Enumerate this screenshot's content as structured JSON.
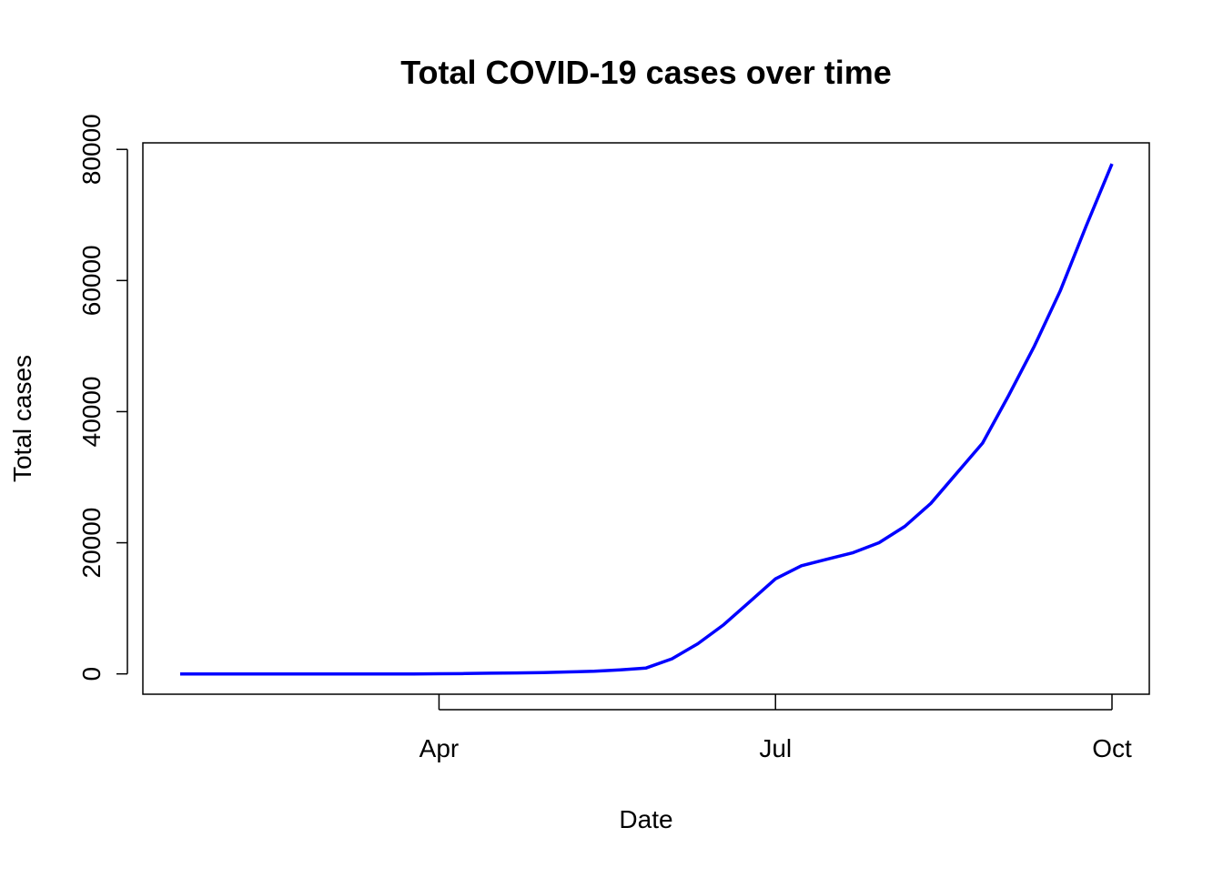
{
  "chart_data": {
    "type": "line",
    "title": "Total COVID-19 cases over time",
    "x_label": "Date",
    "y_label": "Total cases",
    "categories": [
      null,
      null,
      null,
      null,
      null,
      null,
      null,
      null,
      null,
      null,
      "Apr",
      null,
      null,
      null,
      null,
      null,
      null,
      null,
      null,
      null,
      null,
      null,
      null,
      "Jul",
      null,
      null,
      null,
      null,
      null,
      null,
      null,
      null,
      null,
      null,
      null,
      null,
      "Oct"
    ],
    "series": [
      {
        "name": "Total cases",
        "color": "#0000ff",
        "values": [
          0,
          0,
          0,
          0,
          0,
          0,
          0,
          0,
          0,
          0,
          20,
          50,
          100,
          150,
          200,
          300,
          400,
          600,
          900,
          2300,
          4600,
          7500,
          11000,
          14500,
          16500,
          17500,
          18500,
          20000,
          22500,
          26000,
          30600,
          35200,
          42400,
          50000,
          58400,
          68300,
          77800
        ]
      }
    ],
    "ylim": [
      -3100,
      81000
    ],
    "yticks": [
      0,
      20000,
      40000,
      60000,
      80000
    ]
  }
}
